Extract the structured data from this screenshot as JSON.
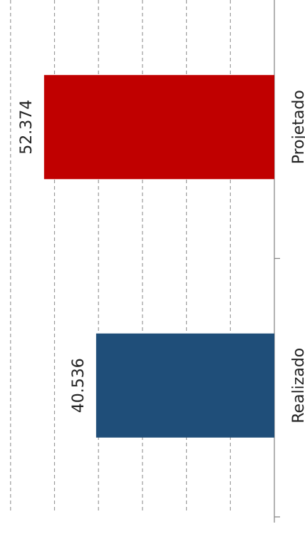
{
  "chart_data": {
    "type": "bar",
    "orientation": "horizontal",
    "rotated_view": "90deg-clockwise",
    "categories": [
      "Projetado",
      "Realizado"
    ],
    "values": [
      52374,
      40536
    ],
    "data_labels": [
      "52.374",
      "40.536"
    ],
    "colors": [
      "#C00000",
      "#1F4E79"
    ],
    "xlim": [
      0,
      60000
    ],
    "grid": true,
    "grid_style": "dashed",
    "grid_color": "#9a9a9a",
    "axis_color": "#888888",
    "legend": "none",
    "title": "",
    "xlabel": "",
    "ylabel": ""
  }
}
